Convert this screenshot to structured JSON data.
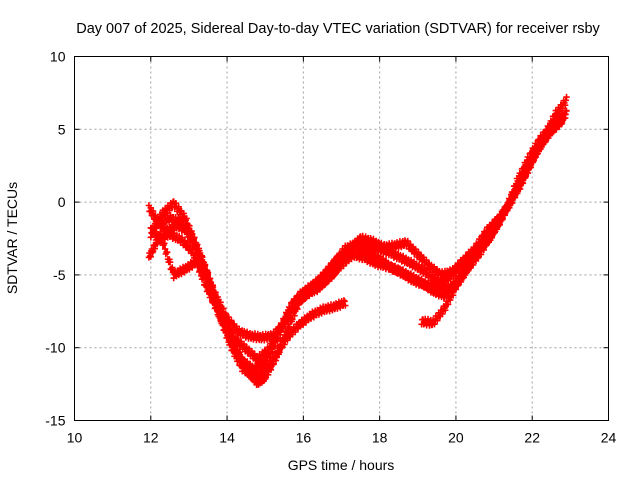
{
  "chart_data": {
    "type": "scatter",
    "title": "Day 007 of 2025, Sidereal Day-to-day VTEC variation (SDTVAR) for receiver rsby",
    "xlabel": "GPS time / hours",
    "ylabel": "SDTVAR / TECUs",
    "xlim": [
      10,
      24
    ],
    "ylim": [
      -15,
      10
    ],
    "xticks": [
      10,
      12,
      14,
      16,
      18,
      20,
      22,
      24
    ],
    "yticks": [
      -15,
      -10,
      -5,
      0,
      5,
      10
    ],
    "xtick_labels": [
      "10",
      "12",
      "14",
      "16",
      "18",
      "20",
      "22",
      "24"
    ],
    "ytick_labels": [
      "-15",
      "-10",
      "-5",
      "0",
      "5",
      "10"
    ],
    "grid": true,
    "marker": "plus",
    "color": "#ff0000",
    "series": [
      {
        "name": "arc-1",
        "points": [
          [
            11.95,
            -3.8
          ],
          [
            12.2,
            -2.5
          ],
          [
            12.5,
            -2.2
          ],
          [
            12.8,
            -2.6
          ],
          [
            13.1,
            -3.4
          ],
          [
            13.4,
            -5.5
          ],
          [
            13.7,
            -7.2
          ],
          [
            14.0,
            -8.9
          ],
          [
            14.3,
            -10.5
          ],
          [
            14.6,
            -11.8
          ],
          [
            14.8,
            -12.4
          ],
          [
            15.0,
            -12.0
          ],
          [
            15.3,
            -10.6
          ],
          [
            15.6,
            -8.6
          ],
          [
            15.9,
            -6.8
          ],
          [
            16.2,
            -6.0
          ],
          [
            16.5,
            -5.6
          ],
          [
            16.8,
            -4.9
          ],
          [
            17.1,
            -3.7
          ],
          [
            17.4,
            -3.2
          ],
          [
            17.7,
            -3.4
          ],
          [
            18.0,
            -3.9
          ],
          [
            18.3,
            -4.5
          ],
          [
            18.6,
            -4.9
          ],
          [
            18.9,
            -5.4
          ],
          [
            19.2,
            -5.7
          ],
          [
            19.5,
            -5.8
          ],
          [
            19.8,
            -5.2
          ],
          [
            20.1,
            -4.5
          ],
          [
            20.4,
            -3.6
          ],
          [
            20.7,
            -2.8
          ],
          [
            21.0,
            -1.6
          ],
          [
            21.3,
            -0.5
          ],
          [
            21.6,
            0.9
          ],
          [
            21.9,
            2.4
          ],
          [
            22.2,
            3.8
          ],
          [
            22.5,
            4.9
          ],
          [
            22.8,
            5.6
          ]
        ]
      },
      {
        "name": "arc-2",
        "points": [
          [
            11.95,
            -0.4
          ],
          [
            12.2,
            -1.4
          ],
          [
            12.5,
            -1.1
          ],
          [
            12.8,
            -1.4
          ],
          [
            13.1,
            -2.8
          ],
          [
            13.4,
            -4.5
          ],
          [
            13.7,
            -6.4
          ],
          [
            14.0,
            -8.0
          ],
          [
            14.3,
            -8.9
          ],
          [
            14.6,
            -9.2
          ],
          [
            14.9,
            -9.3
          ],
          [
            15.2,
            -9.2
          ],
          [
            15.5,
            -8.3
          ],
          [
            15.8,
            -7.0
          ],
          [
            16.1,
            -6.3
          ],
          [
            16.4,
            -5.9
          ],
          [
            16.7,
            -5.1
          ],
          [
            17.0,
            -4.3
          ],
          [
            17.3,
            -3.6
          ],
          [
            17.6,
            -3.8
          ],
          [
            17.9,
            -4.2
          ],
          [
            18.2,
            -4.4
          ],
          [
            18.5,
            -4.7
          ],
          [
            18.8,
            -5.1
          ],
          [
            19.1,
            -5.5
          ],
          [
            19.4,
            -6.1
          ],
          [
            19.7,
            -6.4
          ],
          [
            20.0,
            -5.6
          ],
          [
            20.3,
            -4.6
          ],
          [
            20.6,
            -3.6
          ],
          [
            20.9,
            -2.4
          ],
          [
            21.2,
            -1.1
          ],
          [
            21.5,
            0.4
          ],
          [
            21.8,
            1.9
          ],
          [
            22.1,
            3.4
          ],
          [
            22.4,
            4.6
          ],
          [
            22.7,
            5.5
          ],
          [
            22.9,
            6.1
          ]
        ]
      },
      {
        "name": "arc-3",
        "points": [
          [
            12.0,
            -2.2
          ],
          [
            12.3,
            -0.8
          ],
          [
            12.6,
            -0.1
          ],
          [
            12.9,
            -1.1
          ],
          [
            13.2,
            -3.0
          ],
          [
            13.5,
            -5.0
          ],
          [
            13.8,
            -7.4
          ],
          [
            14.1,
            -9.4
          ],
          [
            14.4,
            -10.9
          ],
          [
            14.7,
            -11.5
          ],
          [
            15.0,
            -11.0
          ],
          [
            15.3,
            -9.5
          ],
          [
            15.6,
            -7.6
          ],
          [
            15.9,
            -6.4
          ],
          [
            16.2,
            -5.8
          ],
          [
            16.5,
            -5.2
          ],
          [
            16.8,
            -4.2
          ],
          [
            17.1,
            -3.2
          ],
          [
            17.4,
            -2.9
          ],
          [
            17.7,
            -3.0
          ],
          [
            18.0,
            -3.2
          ],
          [
            18.3,
            -3.5
          ],
          [
            18.6,
            -3.9
          ],
          [
            18.9,
            -4.3
          ],
          [
            19.2,
            -4.8
          ],
          [
            19.5,
            -5.5
          ],
          [
            19.8,
            -6.0
          ],
          [
            20.1,
            -5.2
          ],
          [
            20.4,
            -4.0
          ],
          [
            20.7,
            -3.0
          ],
          [
            21.0,
            -2.0
          ],
          [
            21.3,
            -0.6
          ],
          [
            21.6,
            1.4
          ],
          [
            21.9,
            3.0
          ],
          [
            22.2,
            4.3
          ],
          [
            22.5,
            5.2
          ],
          [
            22.8,
            5.9
          ]
        ]
      },
      {
        "name": "arc-4",
        "points": [
          [
            12.0,
            -1.9
          ],
          [
            12.3,
            -2.6
          ],
          [
            12.6,
            -5.0
          ],
          [
            12.9,
            -4.6
          ],
          [
            13.2,
            -4.1
          ],
          [
            13.5,
            -5.4
          ],
          [
            13.8,
            -7.8
          ],
          [
            14.1,
            -9.9
          ],
          [
            14.4,
            -11.4
          ],
          [
            14.7,
            -12.0
          ],
          [
            15.0,
            -11.6
          ],
          [
            15.3,
            -10.4
          ],
          [
            15.6,
            -9.2
          ],
          [
            15.9,
            -8.4
          ],
          [
            16.2,
            -7.8
          ],
          [
            16.5,
            -7.4
          ],
          [
            16.8,
            -7.2
          ],
          [
            17.1,
            -6.9
          ]
        ]
      },
      {
        "name": "arc-5",
        "points": [
          [
            12.1,
            -1.2
          ],
          [
            12.4,
            -2.0
          ],
          [
            12.7,
            -1.6
          ],
          [
            13.0,
            -2.0
          ],
          [
            13.3,
            -3.6
          ],
          [
            13.6,
            -5.9
          ],
          [
            13.9,
            -8.0
          ],
          [
            14.2,
            -9.4
          ],
          [
            14.5,
            -10.1
          ],
          [
            14.8,
            -10.8
          ],
          [
            15.1,
            -10.1
          ],
          [
            15.4,
            -8.6
          ],
          [
            15.7,
            -7.0
          ],
          [
            16.0,
            -6.3
          ],
          [
            16.3,
            -5.7
          ],
          [
            16.6,
            -4.8
          ],
          [
            16.9,
            -3.9
          ],
          [
            17.2,
            -3.3
          ],
          [
            17.5,
            -2.5
          ],
          [
            17.8,
            -2.7
          ],
          [
            18.1,
            -3.1
          ],
          [
            18.4,
            -3.0
          ],
          [
            18.7,
            -2.8
          ],
          [
            19.0,
            -3.6
          ],
          [
            19.3,
            -4.4
          ],
          [
            19.6,
            -5.0
          ],
          [
            19.9,
            -4.8
          ],
          [
            20.2,
            -4.0
          ],
          [
            20.5,
            -3.2
          ],
          [
            20.8,
            -2.0
          ],
          [
            21.1,
            -1.2
          ],
          [
            21.4,
            -0.2
          ],
          [
            21.7,
            1.2
          ],
          [
            22.0,
            2.8
          ],
          [
            22.3,
            4.4
          ],
          [
            22.6,
            6.0
          ],
          [
            22.9,
            7.0
          ]
        ]
      },
      {
        "name": "arc-6",
        "points": [
          [
            19.1,
            -8.2
          ],
          [
            19.4,
            -8.3
          ],
          [
            19.7,
            -7.3
          ],
          [
            20.0,
            -5.8
          ],
          [
            20.3,
            -4.6
          ],
          [
            20.6,
            -3.2
          ],
          [
            20.9,
            -2.4
          ],
          [
            21.2,
            -1.0
          ]
        ]
      }
    ]
  }
}
